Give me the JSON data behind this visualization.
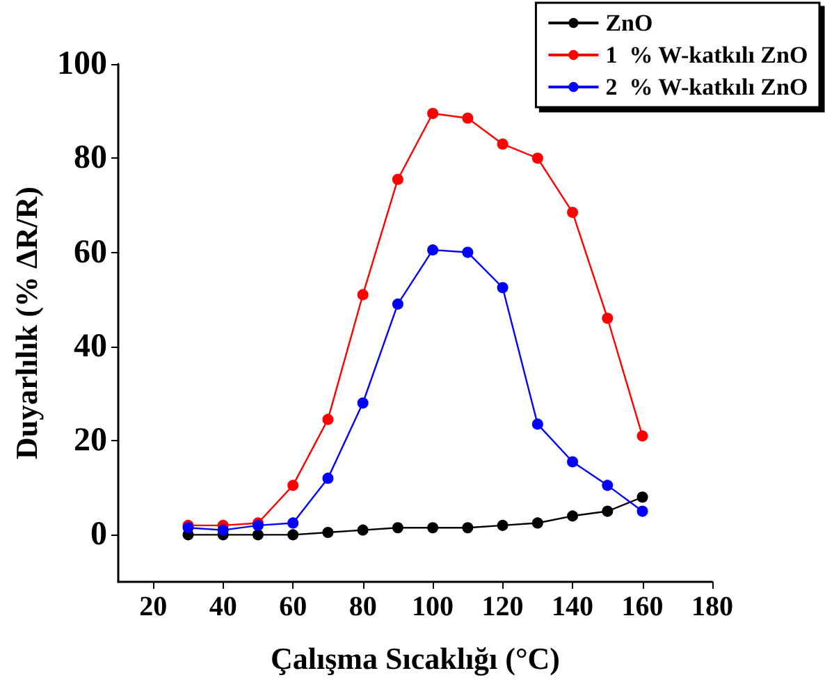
{
  "chart_data": {
    "type": "line",
    "xlabel": "Çalışma Sıcaklığı (°C)",
    "ylabel": "Duyarlılık (% ΔR/R)",
    "x": [
      30,
      40,
      50,
      60,
      70,
      80,
      90,
      100,
      110,
      120,
      130,
      140,
      150,
      160
    ],
    "series": [
      {
        "name": "ZnO",
        "color": "#000000",
        "values": [
          0,
          0,
          0,
          0,
          0.5,
          1,
          1.5,
          1.5,
          1.5,
          2,
          2.5,
          4,
          5,
          8
        ]
      },
      {
        "name": "1  % W-katkılı ZnO",
        "color": "#ff0000",
        "values": [
          2,
          2,
          2.5,
          10.5,
          24.5,
          51,
          75.5,
          89.5,
          88.5,
          83,
          80,
          68.5,
          46,
          21
        ]
      },
      {
        "name": "2  % W-katkılı ZnO",
        "color": "#0000ff",
        "values": [
          1.5,
          1,
          2,
          2.5,
          12,
          28,
          49,
          60.5,
          60,
          52.5,
          23.5,
          15.5,
          10.5,
          5
        ]
      }
    ],
    "xlim": [
      10,
      180
    ],
    "xticks": [
      20,
      40,
      60,
      80,
      100,
      120,
      140,
      160,
      180
    ],
    "ylim": [
      -10,
      100
    ],
    "yticks": [
      0,
      20,
      40,
      60,
      80,
      100
    ],
    "grid": false,
    "legend": "top right",
    "marker": "circle",
    "line_style": "solid"
  }
}
